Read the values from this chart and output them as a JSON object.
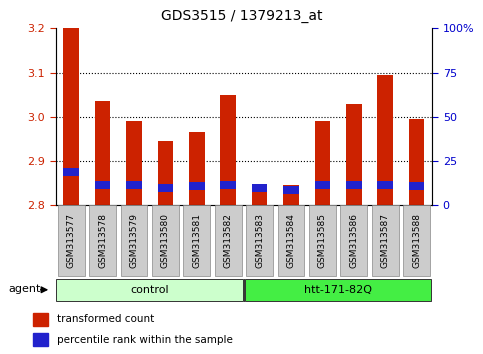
{
  "title": "GDS3515 / 1379213_at",
  "samples": [
    "GSM313577",
    "GSM313578",
    "GSM313579",
    "GSM313580",
    "GSM313581",
    "GSM313582",
    "GSM313583",
    "GSM313584",
    "GSM313585",
    "GSM313586",
    "GSM313587",
    "GSM313588"
  ],
  "transformed_count": [
    3.2,
    3.035,
    2.99,
    2.945,
    2.965,
    3.05,
    2.845,
    2.845,
    2.99,
    3.03,
    3.095,
    2.995
  ],
  "percentile_rank": [
    13,
    10,
    10,
    10,
    10,
    10,
    6,
    5,
    10,
    10,
    10,
    10
  ],
  "percentile_center": [
    2.875,
    2.845,
    2.845,
    2.84,
    2.843,
    2.845,
    2.84,
    2.835,
    2.845,
    2.845,
    2.845,
    2.843
  ],
  "y_min": 2.8,
  "y_max": 3.2,
  "y_ticks": [
    2.8,
    2.9,
    3.0,
    3.1,
    3.2
  ],
  "y2_ticks": [
    0,
    25,
    50,
    75,
    100
  ],
  "bar_color_red": "#cc2200",
  "bar_color_blue": "#2222cc",
  "groups": [
    {
      "label": "control",
      "indices": [
        0,
        1,
        2,
        3,
        4,
        5
      ],
      "color_light": "#ccffcc",
      "color_dark": "#44dd44"
    },
    {
      "label": "htt-171-82Q",
      "indices": [
        6,
        7,
        8,
        9,
        10,
        11
      ],
      "color_light": "#44ee44",
      "color_dark": "#22cc22"
    }
  ],
  "agent_label": "agent",
  "legend_items": [
    {
      "label": "transformed count",
      "color": "#cc2200"
    },
    {
      "label": "percentile rank within the sample",
      "color": "#2222cc"
    }
  ],
  "background_color": "#ffffff",
  "tick_label_color_left": "#cc2200",
  "tick_label_color_right": "#0000cc",
  "xticklabel_bg": "#cccccc",
  "bar_width": 0.5,
  "blue_bar_height": 0.018
}
